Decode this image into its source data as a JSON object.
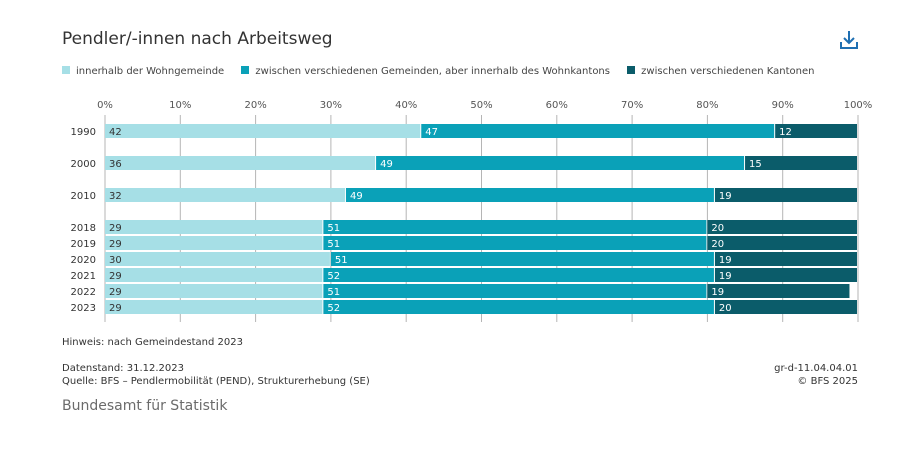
{
  "title": "Pendler/-innen nach Arbeitsweg",
  "icons": {
    "download": "download-icon"
  },
  "colors": {
    "series1": "#a6dfe6",
    "series2": "#0aa1b8",
    "series3": "#0b5c6a",
    "grid": "#b5b5b5"
  },
  "chart_data": {
    "type": "bar",
    "orientation": "horizontal",
    "stacked": true,
    "categories": [
      "1990",
      "2000",
      "2010",
      "2018",
      "2019",
      "2020",
      "2021",
      "2022",
      "2023"
    ],
    "series": [
      {
        "name": "innerhalb der Wohngemeinde",
        "values": [
          42,
          36,
          32,
          29,
          29,
          30,
          29,
          29,
          29
        ]
      },
      {
        "name": "zwischen verschiedenen Gemeinden, aber innerhalb des Wohnkantons",
        "values": [
          47,
          49,
          49,
          51,
          51,
          51,
          52,
          51,
          52
        ]
      },
      {
        "name": "zwischen verschiedenen Kantonen",
        "values": [
          12,
          15,
          19,
          20,
          20,
          19,
          19,
          19,
          20
        ]
      }
    ],
    "xlim": [
      0,
      100
    ],
    "xticks": [
      "0%",
      "10%",
      "20%",
      "30%",
      "40%",
      "50%",
      "60%",
      "70%",
      "80%",
      "90%",
      "100%"
    ],
    "legend_position": "top",
    "grid": true
  },
  "footer": {
    "note": "Hinweis: nach Gemeindestand 2023",
    "date": "Datenstand: 31.12.2023",
    "source": "Quelle: BFS – Pendlermobilität (PEND), Strukturerhebung (SE)",
    "code": "gr-d-11.04.04.01",
    "copyright": "© BFS 2025",
    "publisher": "Bundesamt für Statistik"
  }
}
